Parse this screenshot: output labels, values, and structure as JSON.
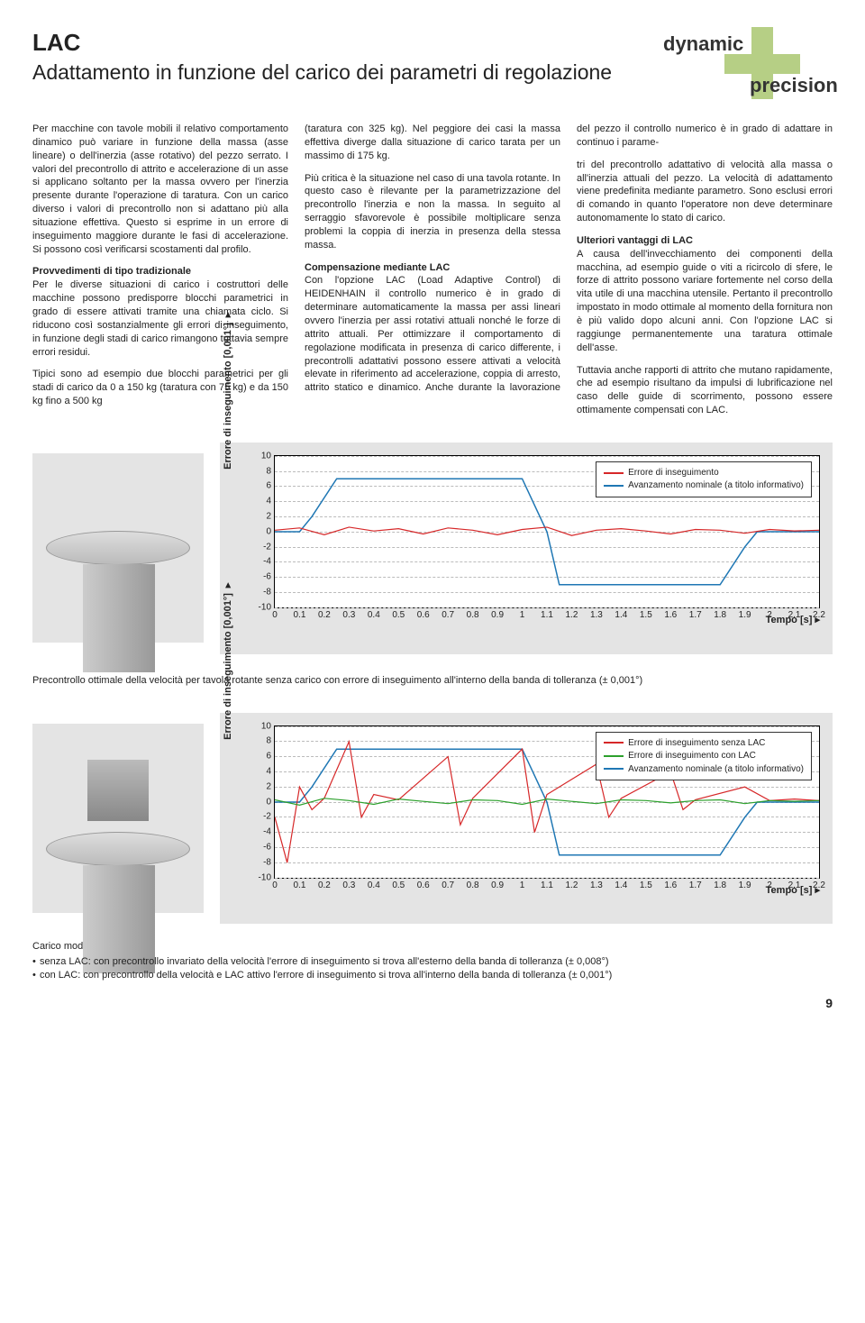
{
  "header": {
    "title": "LAC",
    "subtitle": "Adattamento in funzione del carico dei parametri di regolazione",
    "logo_dynamic": "dynamic",
    "logo_precision": "precision"
  },
  "body": {
    "p1": "Per macchine con tavole mobili il relativo comportamento dinamico può variare in funzione della massa (asse lineare) o dell'inerzia (asse rotativo) del pezzo serrato. I valori del precontrollo di attrito e accelerazione di un asse si applicano soltanto per la massa ovvero per l'inerzia presente durante l'operazione di taratura. Con un carico diverso i valori di precontrollo non si adattano più alla situazione effettiva. Questo si esprime in un errore di inseguimento maggiore durante le fasi di accelerazione. Si possono così verificarsi scostamenti dal profilo.",
    "h_trad": "Provvedimenti di tipo tradizionale",
    "p2": "Per le diverse situazioni di carico i costruttori delle macchine possono predisporre blocchi parametrici in grado di essere attivati tramite una chiamata ciclo. Si riducono così sostanzialmente gli errori di inseguimento, in funzione degli stadi di carico rimangono tuttavia sempre errori residui.",
    "p3": "Tipici sono ad esempio due blocchi parametrici per gli stadi di carico da 0 a 150 kg (taratura con 75 kg) e da 150 kg fino a 500 kg",
    "p4": "(taratura con 325 kg). Nel peggiore dei casi la massa effettiva diverge dalla situazione di carico tarata per un massimo di 175 kg.",
    "p5": "Più critica è la situazione nel caso di una tavola rotante. In questo caso è rilevante per la parametrizzazione del precontrollo l'inerzia e non la massa. In seguito al serraggio sfavorevole è possibile moltiplicare senza problemi la coppia di inerzia in presenza della stessa massa.",
    "h_comp": "Compensazione mediante LAC",
    "p6": "Con l'opzione LAC (Load Adaptive Control) di HEIDENHAIN il controllo numerico è in grado di determinare automaticamente la massa per assi lineari ovvero l'inerzia per assi rotativi attuali nonché le forze di attrito attuali. Per ottimizzare il comportamento di regolazione modificata in presenza di carico differente, i precontrolli adattativi possono essere attivati a velocità elevate in riferimento ad accelerazione, coppia di arresto, attrito statico e dinamico. Anche durante la lavorazione del pezzo il controllo numerico è in grado di adattare in continuo i parame-",
    "p7": "tri del precontrollo adattativo di velocità alla massa o all'inerzia attuali del pezzo. La velocità di adattamento viene predefinita mediante parametro. Sono esclusi errori di comando in quanto l'operatore non deve determinare autonomamente lo stato di carico.",
    "h_vant": "Ulteriori vantaggi di LAC",
    "p8": "A causa dell'invecchiamento dei componenti della macchina, ad esempio guide o viti a ricircolo di sfere, le forze di attrito possono variare fortemente nel corso della vita utile di una macchina utensile. Pertanto il precontrollo impostato in modo ottimale al momento della fornitura non è più valido dopo alcuni anni. Con l'opzione LAC si raggiunge permanentemente una taratura ottimale dell'asse.",
    "p9": "Tuttavia anche rapporti di attrito che mutano rapidamente, che ad esempio risultano da impulsi di lubrificazione nel caso delle guide di scorrimento, possono essere ottimamente compensati con LAC."
  },
  "chart1": {
    "type": "line",
    "ylabel": "Errore di inseguimento [0,001°]",
    "xlabel": "Tempo [s]",
    "ylim": [
      -10,
      10
    ],
    "ytick_step": 2,
    "xlim": [
      0,
      2.2
    ],
    "xtick_step": 0.1,
    "background_color": "#ffffff",
    "grid_color": "#cccccc",
    "legend": [
      {
        "label": "Errore di inseguimento",
        "color": "#d62728"
      },
      {
        "label": "Avanzamento nominale (a titolo informativo)",
        "color": "#1f77b4"
      }
    ],
    "series": {
      "feed": {
        "color": "#1f77b4",
        "width": 1.5,
        "pts": [
          [
            0,
            0
          ],
          [
            0.1,
            0
          ],
          [
            0.15,
            2
          ],
          [
            0.25,
            7
          ],
          [
            0.35,
            7
          ],
          [
            1.0,
            7
          ],
          [
            1.1,
            0
          ],
          [
            1.15,
            -7
          ],
          [
            1.8,
            -7
          ],
          [
            1.9,
            -2
          ],
          [
            1.95,
            0
          ],
          [
            2.2,
            0
          ]
        ]
      },
      "err": {
        "color": "#d62728",
        "width": 1.2,
        "pts": [
          [
            0,
            0.2
          ],
          [
            0.1,
            0.5
          ],
          [
            0.2,
            -0.4
          ],
          [
            0.3,
            0.6
          ],
          [
            0.4,
            0.1
          ],
          [
            0.5,
            0.4
          ],
          [
            0.6,
            -0.3
          ],
          [
            0.7,
            0.5
          ],
          [
            0.8,
            0.2
          ],
          [
            0.9,
            -0.4
          ],
          [
            1.0,
            0.3
          ],
          [
            1.1,
            0.6
          ],
          [
            1.2,
            -0.5
          ],
          [
            1.3,
            0.2
          ],
          [
            1.4,
            0.4
          ],
          [
            1.5,
            0.1
          ],
          [
            1.6,
            -0.3
          ],
          [
            1.7,
            0.3
          ],
          [
            1.8,
            0.2
          ],
          [
            1.9,
            -0.2
          ],
          [
            2.0,
            0.3
          ],
          [
            2.1,
            0.1
          ],
          [
            2.2,
            0.2
          ]
        ]
      }
    }
  },
  "caption_between": "Precontrollo ottimale della velocità per tavola rotante senza carico con errore di inseguimento all'interno della banda di tolleranza (± 0,001°)",
  "chart2": {
    "type": "line",
    "ylabel": "Errore di inseguimento [0,001°]",
    "xlabel": "Tempo [s]",
    "ylim": [
      -10,
      10
    ],
    "ytick_step": 2,
    "xlim": [
      0,
      2.2
    ],
    "xtick_step": 0.1,
    "background_color": "#ffffff",
    "grid_color": "#cccccc",
    "legend": [
      {
        "label": "Errore di inseguimento senza LAC",
        "color": "#d62728"
      },
      {
        "label": "Errore di inseguimento con LAC",
        "color": "#2ca02c"
      },
      {
        "label": "Avanzamento nominale (a titolo informativo)",
        "color": "#1f77b4"
      }
    ],
    "series": {
      "feed": {
        "color": "#1f77b4",
        "width": 1.5,
        "pts": [
          [
            0,
            0
          ],
          [
            0.1,
            0
          ],
          [
            0.15,
            2
          ],
          [
            0.25,
            7
          ],
          [
            0.35,
            7
          ],
          [
            1.0,
            7
          ],
          [
            1.1,
            0
          ],
          [
            1.15,
            -7
          ],
          [
            1.8,
            -7
          ],
          [
            1.9,
            -2
          ],
          [
            1.95,
            0
          ],
          [
            2.2,
            0
          ]
        ]
      },
      "err_no": {
        "color": "#d62728",
        "width": 1.2,
        "pts": [
          [
            0,
            -2
          ],
          [
            0.05,
            -8
          ],
          [
            0.1,
            2
          ],
          [
            0.15,
            -1
          ],
          [
            0.2,
            0.5
          ],
          [
            0.3,
            8
          ],
          [
            0.35,
            -2
          ],
          [
            0.4,
            1
          ],
          [
            0.5,
            0.3
          ],
          [
            0.7,
            6
          ],
          [
            0.75,
            -3
          ],
          [
            0.8,
            0.5
          ],
          [
            1.0,
            7
          ],
          [
            1.05,
            -4
          ],
          [
            1.1,
            1
          ],
          [
            1.3,
            5
          ],
          [
            1.35,
            -2
          ],
          [
            1.4,
            0.5
          ],
          [
            1.6,
            4
          ],
          [
            1.65,
            -1
          ],
          [
            1.7,
            0.3
          ],
          [
            1.9,
            2
          ],
          [
            2.0,
            0.2
          ],
          [
            2.1,
            0.4
          ],
          [
            2.2,
            0.2
          ]
        ]
      },
      "err_lac": {
        "color": "#2ca02c",
        "width": 1.2,
        "pts": [
          [
            0,
            0.3
          ],
          [
            0.1,
            -0.4
          ],
          [
            0.2,
            0.5
          ],
          [
            0.3,
            0.2
          ],
          [
            0.4,
            -0.3
          ],
          [
            0.5,
            0.4
          ],
          [
            0.6,
            0.1
          ],
          [
            0.7,
            -0.2
          ],
          [
            0.8,
            0.3
          ],
          [
            0.9,
            0.2
          ],
          [
            1.0,
            -0.3
          ],
          [
            1.1,
            0.4
          ],
          [
            1.2,
            0.1
          ],
          [
            1.3,
            -0.2
          ],
          [
            1.4,
            0.3
          ],
          [
            1.5,
            0.2
          ],
          [
            1.6,
            -0.1
          ],
          [
            1.7,
            0.2
          ],
          [
            1.8,
            0.3
          ],
          [
            1.9,
            -0.2
          ],
          [
            2.0,
            0.2
          ],
          [
            2.1,
            0.1
          ],
          [
            2.2,
            0.2
          ]
        ]
      }
    }
  },
  "footer": {
    "title": "Carico modificato",
    "li1": "senza LAC: con precontrollo invariato della velocità l'errore di inseguimento si trova all'esterno della banda di tolleranza (± 0,008°)",
    "li2": "con LAC:   con precontrollo della velocità e LAC attivo l'errore di inseguimento si trova all'interno della banda di tolleranza (± 0,001°)"
  },
  "page_number": "9"
}
